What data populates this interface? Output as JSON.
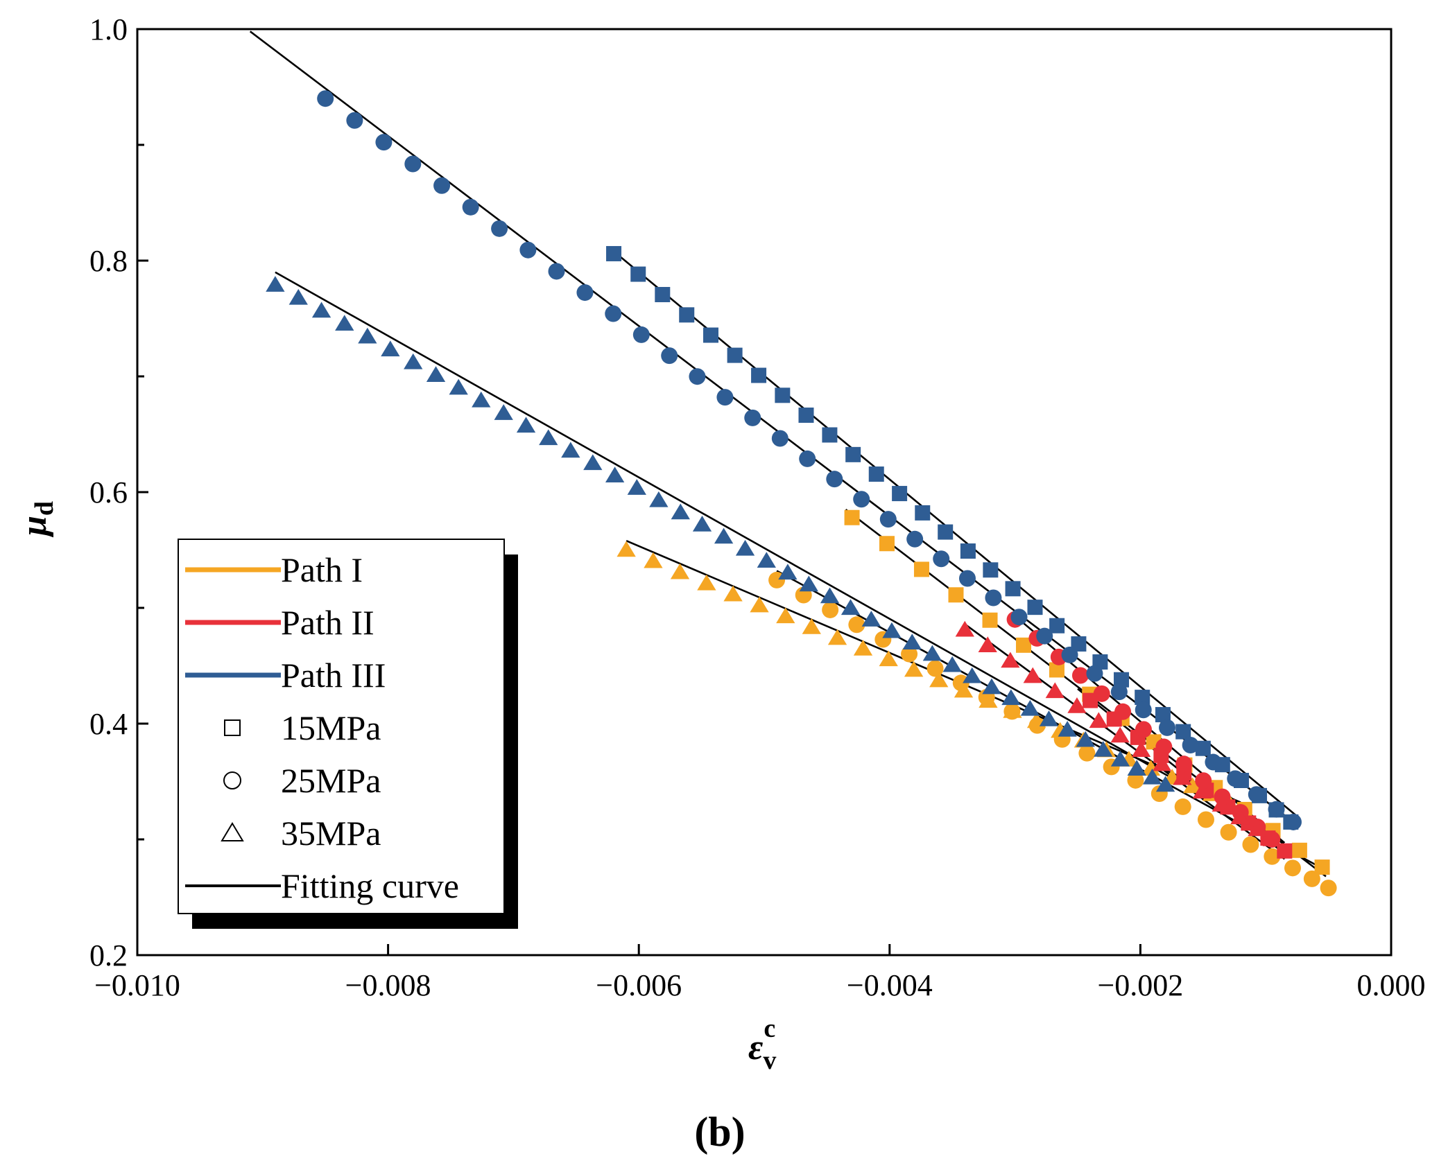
{
  "caption": "(b)",
  "colors": {
    "path1": "#F5A623",
    "path2": "#E8313A",
    "path3": "#2F5D94",
    "fit": "#000000"
  },
  "chart_data": {
    "type": "scatter",
    "title": "",
    "xlabel": {
      "main": "ε",
      "sub": "v",
      "sup": "c"
    },
    "ylabel": {
      "main": "μ",
      "sub": "d"
    },
    "xlim": [
      -0.01,
      0.0
    ],
    "ylim": [
      0.2,
      1.0
    ],
    "xticks": [
      -0.01,
      -0.008,
      -0.006,
      -0.004,
      -0.002,
      0.0
    ],
    "xtick_labels": [
      "−0.010",
      "−0.008",
      "−0.006",
      "−0.004",
      "−0.002",
      "0.000"
    ],
    "yticks": [
      0.2,
      0.4,
      0.6,
      0.8,
      1.0
    ],
    "ytick_labels": [
      "0.2",
      "0.4",
      "0.6",
      "0.8",
      "1.0"
    ],
    "y_minor_ticks": [
      0.3,
      0.5,
      0.7,
      0.9
    ],
    "legend": {
      "position": "bottom-left",
      "entries": [
        {
          "label": "Path I",
          "kind": "line",
          "color_key": "path1"
        },
        {
          "label": "Path II",
          "kind": "line",
          "color_key": "path2"
        },
        {
          "label": "Path III",
          "kind": "line",
          "color_key": "path3"
        },
        {
          "label": "15MPa",
          "kind": "square"
        },
        {
          "label": "25MPa",
          "kind": "circle"
        },
        {
          "label": "35MPa",
          "kind": "triangle"
        },
        {
          "label": "Fitting curve",
          "kind": "line",
          "color_key": "fit"
        }
      ]
    },
    "series": [
      {
        "name": "Path I 15MPa",
        "path": "path1",
        "marker": "square",
        "x_start": -0.0043,
        "x_end": -0.00055,
        "y_start": 0.578,
        "y_end": 0.276,
        "count": 16,
        "fit": [
          [
            -0.00435,
            0.585
          ],
          [
            -0.00052,
            0.268
          ]
        ]
      },
      {
        "name": "Path I 25MPa",
        "path": "path1",
        "marker": "circle",
        "x_start": -0.0049,
        "x_end": -0.0005,
        "y_start": 0.524,
        "y_end": 0.258,
        "count": 24,
        "fit": [
          [
            -0.0049,
            0.532
          ],
          [
            -0.00055,
            0.275
          ]
        ]
      },
      {
        "name": "Path I 35MPa",
        "path": "path1",
        "marker": "triangle",
        "x_start": -0.0061,
        "x_end": -0.0013,
        "y_start": 0.55,
        "y_end": 0.333,
        "count": 26,
        "fit": [
          [
            -0.0061,
            0.558
          ],
          [
            -0.0012,
            0.332
          ]
        ]
      },
      {
        "name": "Path II 15MPa",
        "path": "path2",
        "marker": "square",
        "x_start": -0.0024,
        "x_end": -0.00085,
        "y_start": 0.42,
        "y_end": 0.29,
        "count": 10,
        "fit": [
          [
            -0.0025,
            0.43
          ],
          [
            -0.00082,
            0.285
          ]
        ]
      },
      {
        "name": "Path II 25MPa",
        "path": "path2",
        "marker": "circle",
        "x_start": -0.003,
        "x_end": -0.00095,
        "y_start": 0.49,
        "y_end": 0.3,
        "count": 14,
        "fit": [
          [
            -0.003,
            0.493
          ],
          [
            -0.00085,
            0.297
          ]
        ]
      },
      {
        "name": "Path II 35MPa",
        "path": "path2",
        "marker": "triangle",
        "x_start": -0.0034,
        "x_end": -0.00095,
        "y_start": 0.481,
        "y_end": 0.3,
        "count": 16,
        "fit": [
          [
            -0.0034,
            0.486
          ],
          [
            -0.00085,
            0.283
          ]
        ]
      },
      {
        "name": "Path III 15MPa",
        "path": "path3",
        "marker": "square",
        "x_start": -0.0062,
        "x_end": -0.0008,
        "y_start": 0.806,
        "y_end": 0.315,
        "count": 32,
        "fit": [
          [
            -0.0062,
            0.808
          ],
          [
            -0.00075,
            0.32
          ]
        ]
      },
      {
        "name": "Path III 25MPa",
        "path": "path3",
        "marker": "circle",
        "x_start": -0.0085,
        "x_end": -0.00078,
        "y_start": 0.94,
        "y_end": 0.315,
        "count": 38,
        "fit": [
          [
            -0.0091,
            0.998
          ],
          [
            -0.00078,
            0.315
          ]
        ]
      },
      {
        "name": "Path III 35MPa",
        "path": "path3",
        "marker": "triangle",
        "x_start": -0.0089,
        "x_end": -0.0018,
        "y_start": 0.779,
        "y_end": 0.347,
        "count": 44,
        "fit": [
          [
            -0.0089,
            0.79
          ],
          [
            -0.0017,
            0.35
          ]
        ]
      }
    ]
  }
}
